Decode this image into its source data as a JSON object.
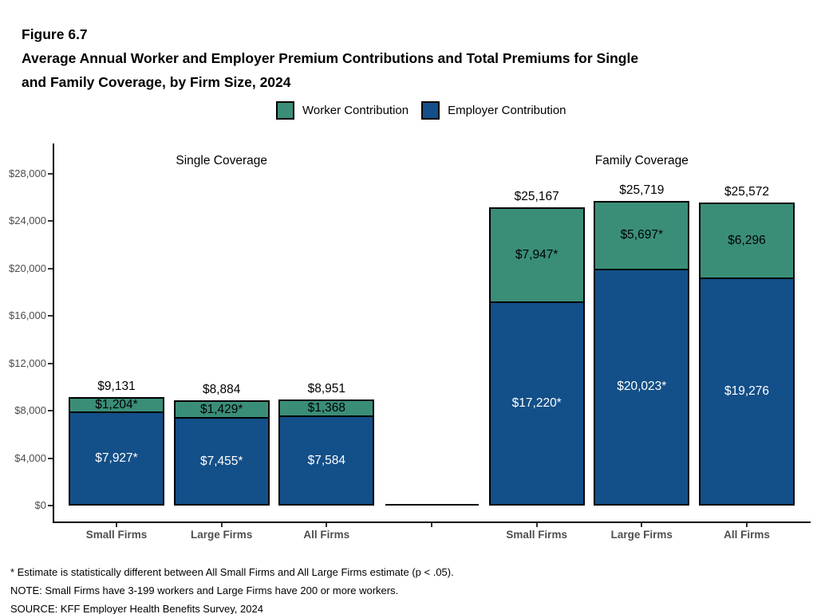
{
  "figure": {
    "label": "Figure 6.7",
    "title_lines": [
      "Average Annual Worker and Employer Premium Contributions and Total Premiums for Single",
      "and Family Coverage, by Firm Size, 2024"
    ]
  },
  "legend": {
    "worker_label": "Worker Contribution",
    "employer_label": "Employer Contribution"
  },
  "colors": {
    "worker": "#3A8E78",
    "employer": "#134F88",
    "axis": "#000000",
    "axis_text": "#4D4D4D"
  },
  "chart_data": {
    "type": "bar",
    "stacked": true,
    "title": "Average Annual Worker and Employer Premium Contributions and Total Premiums for Single and Family Coverage, by Firm Size, 2024",
    "xlabel": "",
    "ylabel": "",
    "ylim": [
      0,
      28000
    ],
    "grid": false,
    "legend_position": "top-center",
    "y_tick_values": [
      0,
      4000,
      8000,
      12000,
      16000,
      20000,
      24000,
      28000
    ],
    "y_tick_labels": [
      "$0",
      "$4,000",
      "$8,000",
      "$12,000",
      "$16,000",
      "$20,000",
      "$24,000",
      "$28,000"
    ],
    "series_names": [
      "Worker Contribution",
      "Employer Contribution"
    ],
    "groups": [
      {
        "label": "Single Coverage",
        "bars": [
          {
            "category": "Small Firms",
            "worker": 1204,
            "employer": 7927,
            "total": 9131,
            "worker_label": "$1,204*",
            "employer_label": "$7,927*",
            "total_label": "$9,131"
          },
          {
            "category": "Large Firms",
            "worker": 1429,
            "employer": 7455,
            "total": 8884,
            "worker_label": "$1,429*",
            "employer_label": "$7,455*",
            "total_label": "$8,884"
          },
          {
            "category": "All Firms",
            "worker": 1368,
            "employer": 7584,
            "total": 8951,
            "worker_label": "$1,368",
            "employer_label": "$7,584",
            "total_label": "$8,951"
          }
        ]
      },
      {
        "label": "Family Coverage",
        "bars": [
          {
            "category": "Small Firms",
            "worker": 7947,
            "employer": 17220,
            "total": 25167,
            "worker_label": "$7,947*",
            "employer_label": "$17,220*",
            "total_label": "$25,167"
          },
          {
            "category": "Large Firms",
            "worker": 5697,
            "employer": 20023,
            "total": 25719,
            "worker_label": "$5,697*",
            "employer_label": "$20,023*",
            "total_label": "$25,719"
          },
          {
            "category": "All Firms",
            "worker": 6296,
            "employer": 19276,
            "total": 25572,
            "worker_label": "$6,296",
            "employer_label": "$19,276",
            "total_label": "$25,572"
          }
        ]
      }
    ]
  },
  "footnotes": [
    "* Estimate is statistically different between All Small Firms and All Large Firms estimate (p < .05).",
    "NOTE: Small Firms have 3-199 workers and Large Firms have 200 or more workers.",
    "SOURCE: KFF Employer Health Benefits Survey, 2024"
  ]
}
